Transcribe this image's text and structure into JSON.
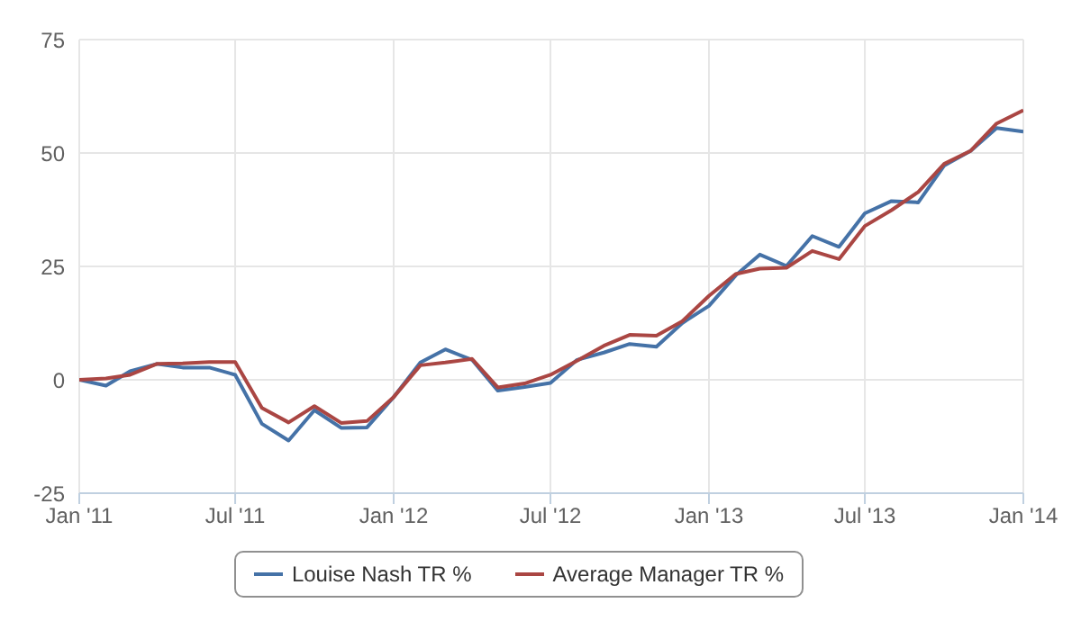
{
  "chart_data": {
    "type": "line",
    "x": [
      "2011-01",
      "2011-02",
      "2011-03",
      "2011-04",
      "2011-05",
      "2011-06",
      "2011-07",
      "2011-08",
      "2011-09",
      "2011-10",
      "2011-11",
      "2011-12",
      "2012-01",
      "2012-02",
      "2012-03",
      "2012-04",
      "2012-05",
      "2012-06",
      "2012-07",
      "2012-08",
      "2012-09",
      "2012-10",
      "2012-11",
      "2012-12",
      "2013-01",
      "2013-02",
      "2013-03",
      "2013-04",
      "2013-05",
      "2013-06",
      "2013-07",
      "2013-08",
      "2013-09",
      "2013-10",
      "2013-11",
      "2013-12",
      "2014-01"
    ],
    "series": [
      {
        "name": "Louise Nash TR %",
        "color": "#4572a7",
        "values": [
          0,
          -1.3,
          1.9,
          3.5,
          2.7,
          2.7,
          1.1,
          -9.7,
          -13.4,
          -6.7,
          -10.6,
          -10.5,
          -3.8,
          3.8,
          6.7,
          4.4,
          -2.4,
          -1.6,
          -0.7,
          4.4,
          6.0,
          7.9,
          7.3,
          12.5,
          16.3,
          23.0,
          27.6,
          25.1,
          31.7,
          29.3,
          36.7,
          39.4,
          39.1,
          47.2,
          50.5,
          55.5,
          54.7
        ]
      },
      {
        "name": "Average Manager TR %",
        "color": "#aa4643",
        "values": [
          0,
          0.3,
          1.1,
          3.5,
          3.6,
          3.9,
          3.9,
          -6.2,
          -9.4,
          -5.8,
          -9.5,
          -9.1,
          -3.8,
          3.2,
          3.8,
          4.6,
          -1.7,
          -0.8,
          1.1,
          4.2,
          7.5,
          9.9,
          9.7,
          12.9,
          18.5,
          23.3,
          24.5,
          24.7,
          28.4,
          26.6,
          33.9,
          37.4,
          41.4,
          47.6,
          50.5,
          56.5,
          59.4
        ]
      }
    ],
    "xlim": [
      "2011-01",
      "2014-01"
    ],
    "xticks": [
      {
        "value": "2011-01",
        "label": "Jan '11"
      },
      {
        "value": "2011-07",
        "label": "Jul '11"
      },
      {
        "value": "2012-01",
        "label": "Jan '12"
      },
      {
        "value": "2012-07",
        "label": "Jul '12"
      },
      {
        "value": "2013-01",
        "label": "Jan '13"
      },
      {
        "value": "2013-07",
        "label": "Jul '13"
      },
      {
        "value": "2014-01",
        "label": "Jan '14"
      }
    ],
    "ylim": [
      -25,
      75
    ],
    "yticks": [
      -25,
      0,
      25,
      50,
      75
    ],
    "grid": true,
    "legend": "bottom",
    "marker": "none",
    "line_style": "solid"
  }
}
